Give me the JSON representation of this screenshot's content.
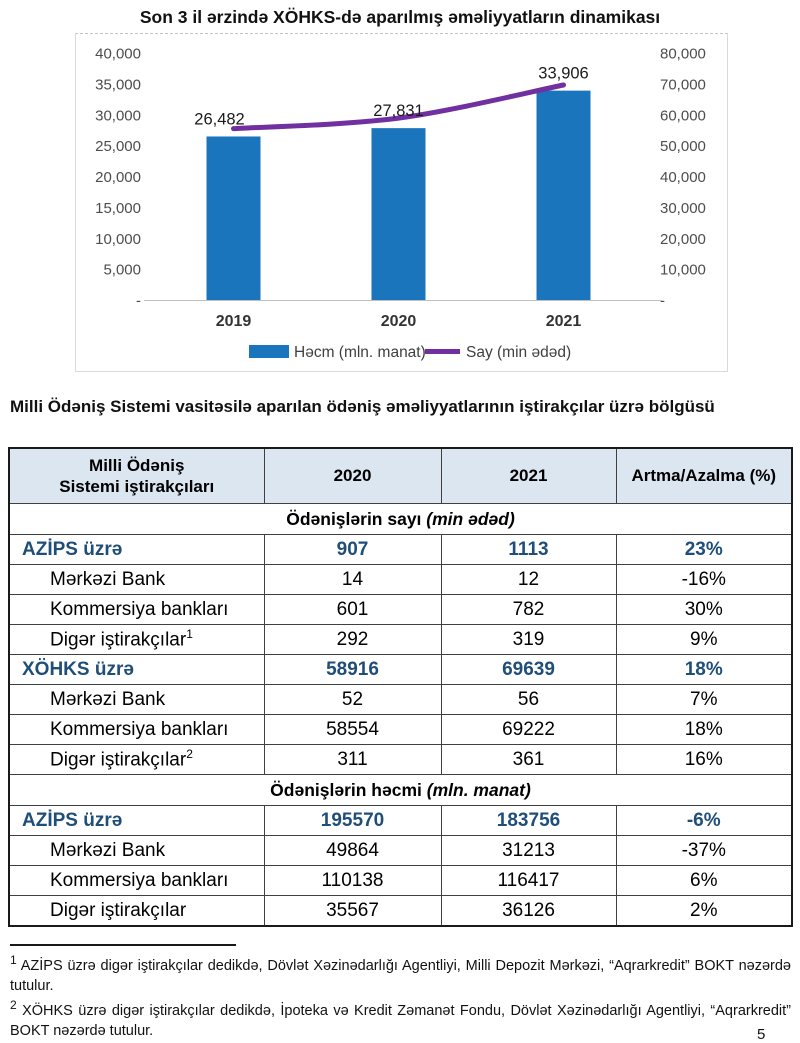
{
  "page_title": "Son 3 il ərzində XÖHKS-də aparılmış əməliyyatların dinamikası",
  "section_heading": "Milli Ödəniş Sistemi vasitəsilə aparılan ödəniş əməliyyatlarının iştirakçılar üzrə bölgüsü",
  "colors": {
    "bar": "#1b75bc",
    "line": "#7030a0",
    "header_bg": "#dce6f1",
    "emphasis_text": "#1f4e79",
    "axis_text": "#4d4d4d"
  },
  "chart_data": {
    "type": "bar",
    "subtype": "combo-bar-line",
    "title": "Son 3 il ərzində XÖHKS-də aparılmış əməliyyatların dinamikası",
    "categories": [
      "2019",
      "2020",
      "2021"
    ],
    "series": [
      {
        "name": "Həcm (mln. manat)",
        "type": "bar",
        "axis": "left",
        "color": "#1b75bc",
        "values": [
          26482,
          27831,
          33906
        ],
        "data_labels": [
          "26,482",
          "27,831",
          "33,906"
        ]
      },
      {
        "name": "Say (min ədəd)",
        "type": "line",
        "axis": "right",
        "color": "#7030a0",
        "values": [
          55500,
          58916,
          69639
        ]
      }
    ],
    "left_axis": {
      "min": 0,
      "max": 40000,
      "step": 5000,
      "tick_labels": [
        "40,000",
        "35,000",
        "30,000",
        "25,000",
        "20,000",
        "15,000",
        "10,000",
        "5,000",
        "-"
      ]
    },
    "right_axis": {
      "min": 0,
      "max": 80000,
      "step": 10000,
      "tick_labels": [
        "80,000",
        "70,000",
        "60,000",
        "50,000",
        "40,000",
        "30,000",
        "20,000",
        "10,000",
        "-"
      ]
    },
    "grid": false,
    "legend_position": "bottom"
  },
  "table": {
    "columns": [
      {
        "line1": "Milli Ödəniş",
        "line2": "Sistemi iştirakçıları"
      },
      {
        "label": "2020"
      },
      {
        "label": "2021"
      },
      {
        "label": "Artma/Azalma (%)"
      }
    ],
    "sections": [
      {
        "title": "Ödənişlərin sayı",
        "unit": "(min ədəd)",
        "rows": [
          {
            "label": "AZİPS üzrə",
            "v2020": "907",
            "v2021": "1113",
            "change": "23%",
            "emphasis": true,
            "indent": false,
            "sup": ""
          },
          {
            "label": "Mərkəzi Bank",
            "v2020": "14",
            "v2021": "12",
            "change": "-16%",
            "emphasis": false,
            "indent": true,
            "sup": ""
          },
          {
            "label": "Kommersiya bankları",
            "v2020": "601",
            "v2021": "782",
            "change": "30%",
            "emphasis": false,
            "indent": true,
            "sup": ""
          },
          {
            "label": "Digər iştirakçılar",
            "v2020": "292",
            "v2021": "319",
            "change": "9%",
            "emphasis": false,
            "indent": true,
            "sup": "1"
          },
          {
            "label": "XÖHKS üzrə",
            "v2020": "58916",
            "v2021": "69639",
            "change": "18%",
            "emphasis": true,
            "indent": false,
            "sup": ""
          },
          {
            "label": "Mərkəzi Bank",
            "v2020": "52",
            "v2021": "56",
            "change": "7%",
            "emphasis": false,
            "indent": true,
            "sup": ""
          },
          {
            "label": "Kommersiya bankları",
            "v2020": "58554",
            "v2021": "69222",
            "change": "18%",
            "emphasis": false,
            "indent": true,
            "sup": ""
          },
          {
            "label": "Digər iştirakçılar",
            "v2020": "311",
            "v2021": "361",
            "change": "16%",
            "emphasis": false,
            "indent": true,
            "sup": "2"
          }
        ]
      },
      {
        "title": "Ödənişlərin həcmi",
        "unit": "(mln. manat)",
        "rows": [
          {
            "label": "AZİPS üzrə",
            "v2020": "195570",
            "v2021": "183756",
            "change": "-6%",
            "emphasis": true,
            "indent": false,
            "sup": ""
          },
          {
            "label": "Mərkəzi Bank",
            "v2020": "49864",
            "v2021": "31213",
            "change": "-37%",
            "emphasis": false,
            "indent": true,
            "sup": ""
          },
          {
            "label": "Kommersiya bankları",
            "v2020": "110138",
            "v2021": "116417",
            "change": "6%",
            "emphasis": false,
            "indent": true,
            "sup": ""
          },
          {
            "label": "Digər iştirakçılar",
            "v2020": "35567",
            "v2021": "36126",
            "change": "2%",
            "emphasis": false,
            "indent": true,
            "sup": ""
          }
        ]
      }
    ]
  },
  "footnotes": [
    {
      "marker": "1",
      "text": "AZİPS üzrə digər iştirakçılar dedikdə, Dövlət Xəzinədarlığı Agentliyi, Milli Depozit Mərkəzi, “Aqrarkredit” BOKT nəzərdə tutulur."
    },
    {
      "marker": "2",
      "text": "XÖHKS üzrə digər iştirakçılar dedikdə, İpoteka və Kredit Zəmanət Fondu, Dövlət Xəzinədarlığı Agentliyi, “Aqrarkredit” BOKT nəzərdə tutulur."
    }
  ],
  "page_number": "5"
}
